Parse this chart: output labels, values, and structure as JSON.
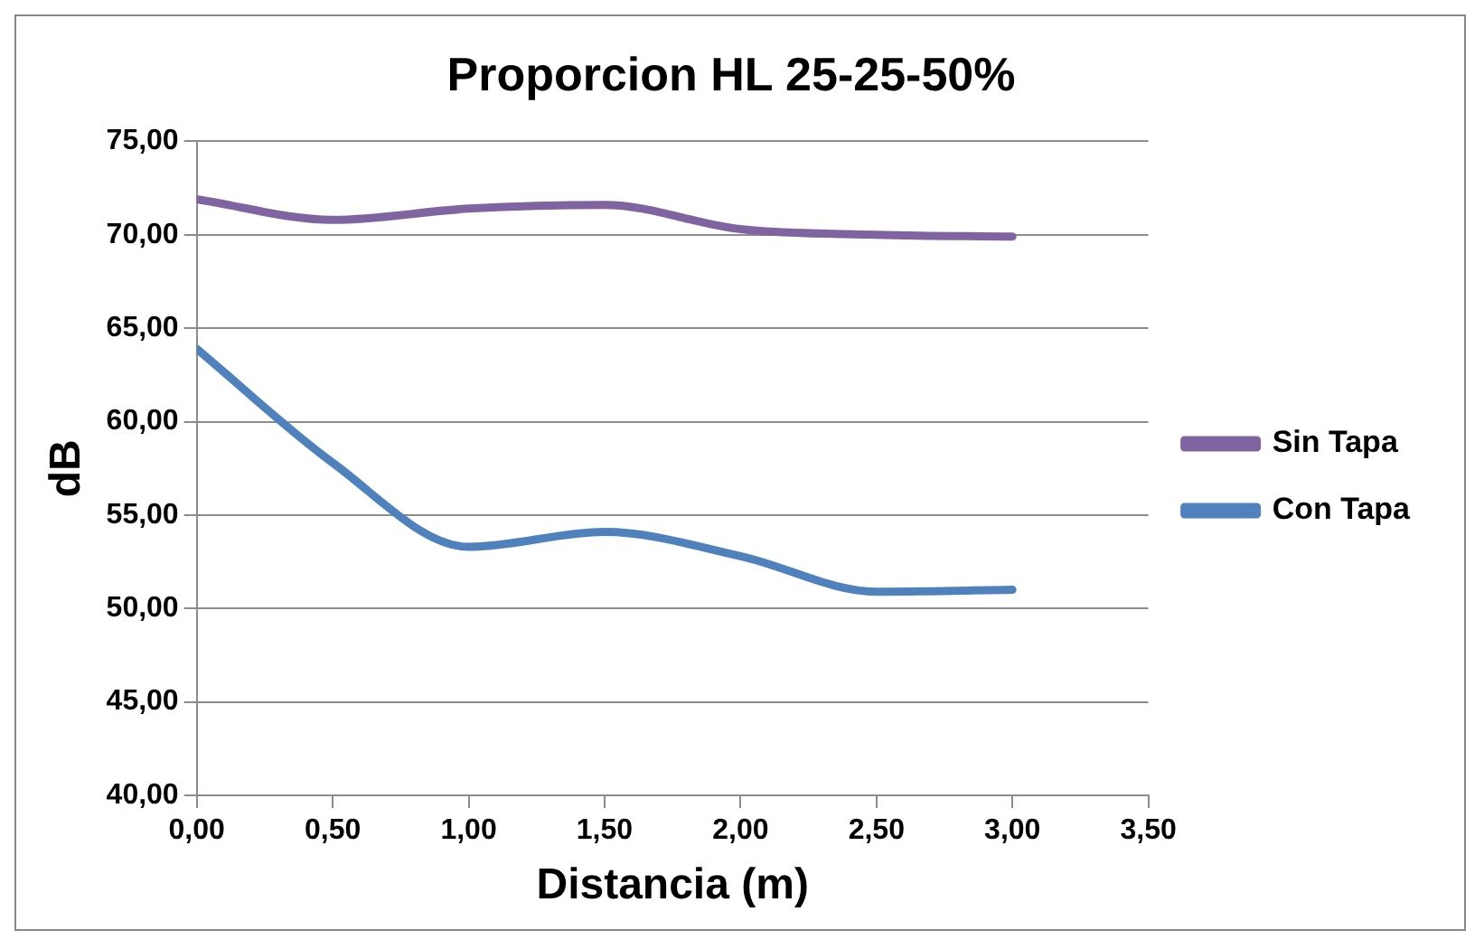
{
  "chart_data": {
    "type": "line",
    "title": "Proporcion HL 25-25-50%",
    "xlabel": "Distancia (m)",
    "ylabel": "dB",
    "x": [
      0,
      0.5,
      1,
      1.5,
      2,
      2.5,
      3
    ],
    "series": [
      {
        "name": "Sin Tapa",
        "color": "#8064a2",
        "values": [
          71.9,
          70.8,
          71.4,
          71.6,
          70.3,
          70.0,
          69.9
        ]
      },
      {
        "name": "Con Tapa",
        "color": "#4f81bd",
        "values": [
          63.9,
          57.8,
          53.3,
          54.1,
          52.8,
          50.9,
          51.0
        ]
      }
    ],
    "xlim": [
      0,
      3.5
    ],
    "xticks": [
      {
        "value": 0,
        "label": "0,00"
      },
      {
        "value": 0.5,
        "label": "0,50"
      },
      {
        "value": 1,
        "label": "1,00"
      },
      {
        "value": 1.5,
        "label": "1,50"
      },
      {
        "value": 2,
        "label": "2,00"
      },
      {
        "value": 2.5,
        "label": "2,50"
      },
      {
        "value": 3,
        "label": "3,00"
      },
      {
        "value": 3.5,
        "label": "3,50"
      }
    ],
    "ylim": [
      40,
      75
    ],
    "yticks": [
      {
        "value": 40,
        "label": "40,00"
      },
      {
        "value": 45,
        "label": "45,00"
      },
      {
        "value": 50,
        "label": "50,00"
      },
      {
        "value": 55,
        "label": "55,00"
      },
      {
        "value": 60,
        "label": "60,00"
      },
      {
        "value": 65,
        "label": "65,00"
      },
      {
        "value": 70,
        "label": "70,00"
      },
      {
        "value": 75,
        "label": "75,00"
      }
    ],
    "grid": "y",
    "legend": "right",
    "marker": "none",
    "line_style": "solid"
  }
}
